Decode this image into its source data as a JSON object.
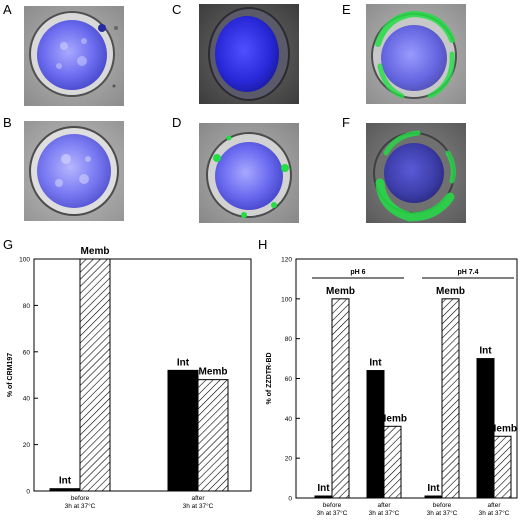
{
  "figure": {
    "panels": {
      "A": "A",
      "B": "B",
      "C": "C",
      "D": "D",
      "E": "E",
      "F": "F",
      "G": "G",
      "H": "H"
    },
    "micrographs": [
      {
        "id": "A",
        "style": "blue-dapi-brightfield",
        "green": false
      },
      {
        "id": "B",
        "style": "blue-dapi-brightfield",
        "green": false
      },
      {
        "id": "C",
        "style": "blue-dark",
        "green": false
      },
      {
        "id": "D",
        "style": "blue-dapi-brightfield",
        "green": true
      },
      {
        "id": "E",
        "style": "blue-dapi-brightfield",
        "green": true
      },
      {
        "id": "F",
        "style": "blue-dark",
        "green": true
      }
    ]
  },
  "chart_data": [
    {
      "type": "bar",
      "panel": "G",
      "ylabel": "% of CRM197",
      "ylim": [
        0,
        100
      ],
      "yticks": [
        0,
        20,
        40,
        60,
        80,
        100
      ],
      "categories": [
        "before 3h at 37°C",
        "after 3h at 37°C"
      ],
      "category_lines": [
        [
          "before",
          "3h at 37°C"
        ],
        [
          "after",
          "3h at 37°C"
        ]
      ],
      "series": [
        {
          "name": "Int",
          "fill": "#000000",
          "values": [
            1,
            52
          ]
        },
        {
          "name": "Memb",
          "fill": "hatched",
          "values": [
            100,
            48
          ]
        }
      ],
      "bar_labels": [
        [
          "Int",
          "Memb"
        ],
        [
          "Int",
          "Memb"
        ]
      ],
      "grid": false
    },
    {
      "type": "bar",
      "panel": "H",
      "ylabel": "% of ZZDTR-BD",
      "ylim": [
        0,
        120
      ],
      "yticks": [
        0,
        20,
        40,
        60,
        80,
        100,
        120
      ],
      "groups": [
        "pH 6",
        "pH 7.4"
      ],
      "categories": [
        "before 3h at 37°C",
        "after 3h at 37°C",
        "before 3h at 37°C",
        "after 3h at 37°C"
      ],
      "category_lines": [
        [
          "before",
          "3h at 37°C"
        ],
        [
          "after",
          "3h at 37°C"
        ],
        [
          "before",
          "3h at 37°C"
        ],
        [
          "after",
          "3h at 37°C"
        ]
      ],
      "series": [
        {
          "name": "Int",
          "fill": "#000000",
          "values": [
            1,
            64,
            1,
            70
          ]
        },
        {
          "name": "Memb",
          "fill": "hatched",
          "values": [
            100,
            36,
            100,
            31
          ]
        }
      ],
      "bar_labels": [
        [
          "Int",
          "Memb"
        ],
        [
          "Int",
          "Memb"
        ],
        [
          "Int",
          "Memb"
        ],
        [
          "Int",
          "Memb"
        ]
      ],
      "grid": false
    }
  ]
}
